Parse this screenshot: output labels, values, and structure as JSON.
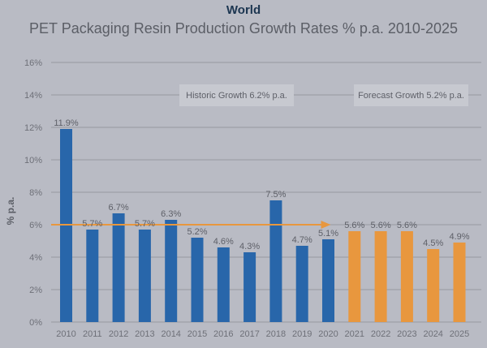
{
  "chart_data": {
    "type": "bar",
    "title": "World",
    "subtitle": "PET Packaging Resin Production Growth Rates % p.a. 2010-2025",
    "xlabel": "",
    "ylabel": "% p.a.",
    "ylim": [
      0,
      16
    ],
    "yticks": [
      0,
      2,
      4,
      6,
      8,
      10,
      12,
      14,
      16
    ],
    "ytick_labels": [
      "0%",
      "2%",
      "4%",
      "6%",
      "8%",
      "10%",
      "12%",
      "14%",
      "16%"
    ],
    "grid": true,
    "categories": [
      "2010",
      "2011",
      "2012",
      "2013",
      "2014",
      "2015",
      "2016",
      "2017",
      "2018",
      "2019",
      "2020",
      "2021",
      "2022",
      "2023",
      "2024",
      "2025"
    ],
    "values": [
      11.9,
      5.7,
      6.7,
      5.7,
      6.3,
      5.2,
      4.6,
      4.3,
      7.5,
      4.7,
      5.1,
      5.6,
      5.6,
      5.6,
      4.5,
      4.9
    ],
    "value_labels": [
      "11.9%",
      "5.7%",
      "6.7%",
      "5.7%",
      "6.3%",
      "5.2%",
      "4.6%",
      "4.3%",
      "7.5%",
      "4.7%",
      "5.1%",
      "5.6%",
      "5.6%",
      "5.6%",
      "4.5%",
      "4.9%"
    ],
    "series_type": [
      "historic",
      "historic",
      "historic",
      "historic",
      "historic",
      "historic",
      "historic",
      "historic",
      "historic",
      "historic",
      "historic",
      "forecast",
      "forecast",
      "forecast",
      "forecast",
      "forecast"
    ],
    "colors": {
      "historic": "#2866AA",
      "forecast": "#E8973E",
      "trend_arrow": "#E8973E"
    },
    "trend_arrow": {
      "value": 6.0,
      "from": "2010",
      "to": "2020"
    },
    "annotations": [
      {
        "text": "Historic Growth 6.2% p.a.",
        "y_level": 14
      },
      {
        "text": "Forecast Growth 5.2% p.a.",
        "y_level": 14
      }
    ]
  }
}
